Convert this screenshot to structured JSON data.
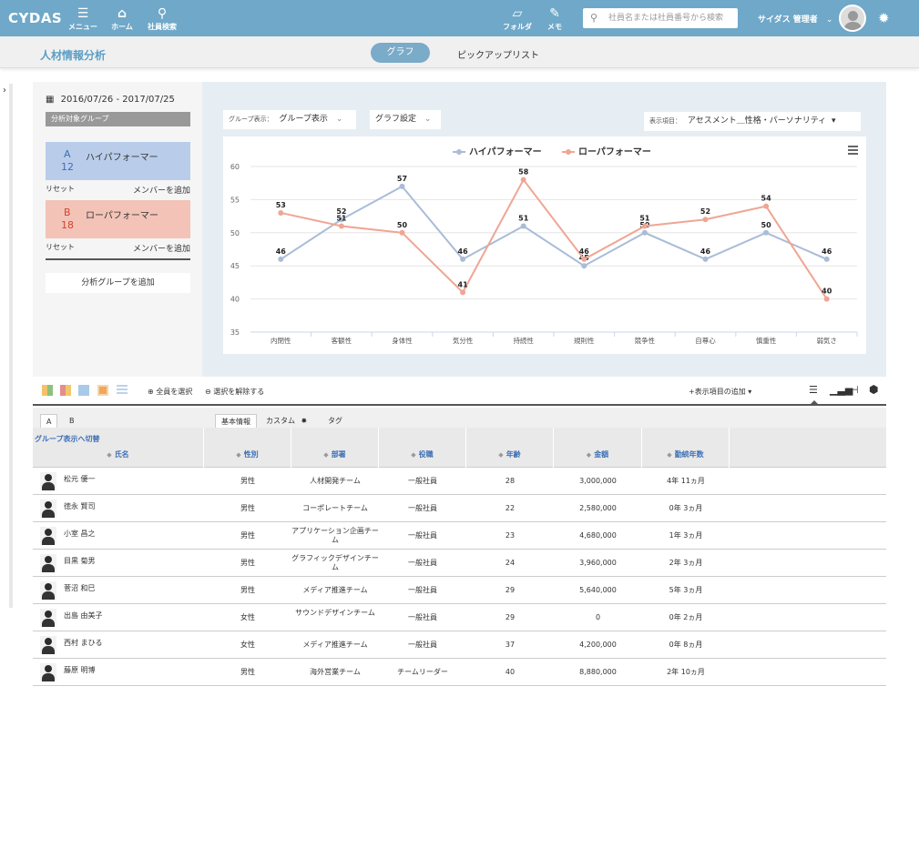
{
  "header": {
    "logo": "CYDAS",
    "nav": [
      {
        "label": "メニュー",
        "icon": "menu-icon"
      },
      {
        "label": "ホーム",
        "icon": "home-icon"
      },
      {
        "label": "社員検索",
        "icon": "search-icon"
      }
    ],
    "right_nav": [
      {
        "label": "フォルダ",
        "icon": "folder-icon"
      },
      {
        "label": "メモ",
        "icon": "memo-icon"
      }
    ],
    "search_placeholder": "社員名または社員番号から検索",
    "user_name": "サイダス 管理者"
  },
  "subheader": {
    "title": "人材情報分析",
    "tabs": [
      {
        "label": "グラフ",
        "active": true
      },
      {
        "label": "ピックアップリスト",
        "active": false
      }
    ]
  },
  "left_panel": {
    "date_range": "2016/07/26 - 2017/07/25",
    "group_label": "分析対象グループ",
    "groups": [
      {
        "letter": "A",
        "count": "12",
        "name": "ハイパフォーマー",
        "color": "#b9cdea",
        "letter_color": "#3d6fb5",
        "reset": "リセット",
        "add_member": "メンバーを追加"
      },
      {
        "letter": "B",
        "count": "18",
        "name": "ローパフォーマー",
        "color": "#f3c3b8",
        "letter_color": "#d0452f",
        "reset": "リセット",
        "add_member": "メンバーを追加"
      }
    ],
    "add_group": "分析グループを追加"
  },
  "chart_controls": {
    "group_display_label": "グループ表示：",
    "group_display_value": "グループ表示",
    "graph_settings": "グラフ設定",
    "display_item_label": "表示項目：",
    "display_item_value": "アセスメント＿性格・パーソナリティ"
  },
  "chart_data": {
    "type": "line",
    "categories": [
      "内閉性",
      "客観性",
      "身体性",
      "気分性",
      "持続性",
      "規則性",
      "競争性",
      "自尊心",
      "慎重性",
      "弱気さ"
    ],
    "series": [
      {
        "name": "ハイパフォーマー",
        "color": "#a9bcd8",
        "values": [
          46,
          52,
          57,
          46,
          51,
          45,
          50,
          46,
          50,
          46
        ]
      },
      {
        "name": "ローパフォーマー",
        "color": "#f0a594",
        "values": [
          53,
          51,
          50,
          41,
          58,
          46,
          51,
          52,
          54,
          40
        ]
      }
    ],
    "ylim": [
      35,
      60
    ],
    "yticks": [
      35,
      40,
      45,
      50,
      55,
      60
    ],
    "legend": "top-center",
    "grid": true
  },
  "toolbar": {
    "select_all": "全員を選択",
    "deselect": "選択を解除する",
    "add_item": "+表示項目の追加"
  },
  "table": {
    "group_tabs": [
      "A",
      "B"
    ],
    "info_tabs": [
      "基本情報",
      "カスタム",
      "タグ"
    ],
    "switch_link": "グループ表示へ切替",
    "columns": [
      "氏名",
      "性別",
      "部署",
      "役職",
      "年齢",
      "金額",
      "勤続年数"
    ],
    "rows": [
      {
        "name": "松元 優一",
        "gender": "男性",
        "dept": "人材開発チーム",
        "title": "一般社員",
        "age": "28",
        "amount": "3,000,000",
        "tenure": "4年 11ヵ月"
      },
      {
        "name": "徳永 賢司",
        "gender": "男性",
        "dept": "コーポレートチーム",
        "title": "一般社員",
        "age": "22",
        "amount": "2,580,000",
        "tenure": "0年 3ヵ月"
      },
      {
        "name": "小室 昌之",
        "gender": "男性",
        "dept": "アプリケーション企画チーム",
        "title": "一般社員",
        "age": "23",
        "amount": "4,680,000",
        "tenure": "1年 3ヵ月"
      },
      {
        "name": "目黒 菊男",
        "gender": "男性",
        "dept": "グラフィックデザインチーム",
        "title": "一般社員",
        "age": "24",
        "amount": "3,960,000",
        "tenure": "2年 3ヵ月"
      },
      {
        "name": "菅沼 和巳",
        "gender": "男性",
        "dept": "メディア推進チーム",
        "title": "一般社員",
        "age": "29",
        "amount": "5,640,000",
        "tenure": "5年 3ヵ月"
      },
      {
        "name": "出島 由美子",
        "gender": "女性",
        "dept": "サウンドデザインチーム",
        "title": "一般社員",
        "age": "29",
        "amount": "0",
        "tenure": "0年 2ヵ月"
      },
      {
        "name": "西村 まひる",
        "gender": "女性",
        "dept": "メディア推進チーム",
        "title": "一般社員",
        "age": "37",
        "amount": "4,200,000",
        "tenure": "0年 8ヵ月"
      },
      {
        "name": "藤原 明博",
        "gender": "男性",
        "dept": "海外営業チーム",
        "title": "チームリーダー",
        "age": "40",
        "amount": "8,880,000",
        "tenure": "2年 10ヵ月"
      }
    ]
  }
}
